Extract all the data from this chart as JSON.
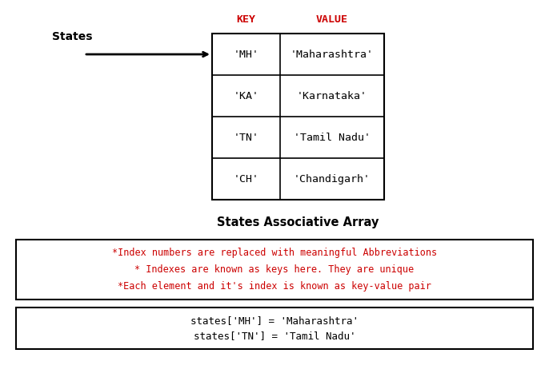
{
  "title": "States Associative Array",
  "table_keys": [
    "'MH'",
    "'KA'",
    "'TN'",
    "'CH'"
  ],
  "table_values": [
    "'Maharashtra'",
    "'Karnataka'",
    "'Tamil Nadu'",
    "'Chandigarh'"
  ],
  "col_header_key": "KEY",
  "col_header_value": "VALUE",
  "arrow_label": "States",
  "note_lines": [
    "*Index numbers are replaced with meaningful Abbreviations",
    "* Indexes are known as keys here. They are unique",
    "*Each element and it's index is known as key-value pair"
  ],
  "code_lines": [
    "states['MH'] = 'Maharashtra'",
    "states['TN'] = 'Tamil Nadu'"
  ],
  "bg_color": "#ffffff",
  "text_color": "#000000",
  "red_color": "#cc0000",
  "fig_width": 6.86,
  "fig_height": 4.67,
  "dpi": 100
}
